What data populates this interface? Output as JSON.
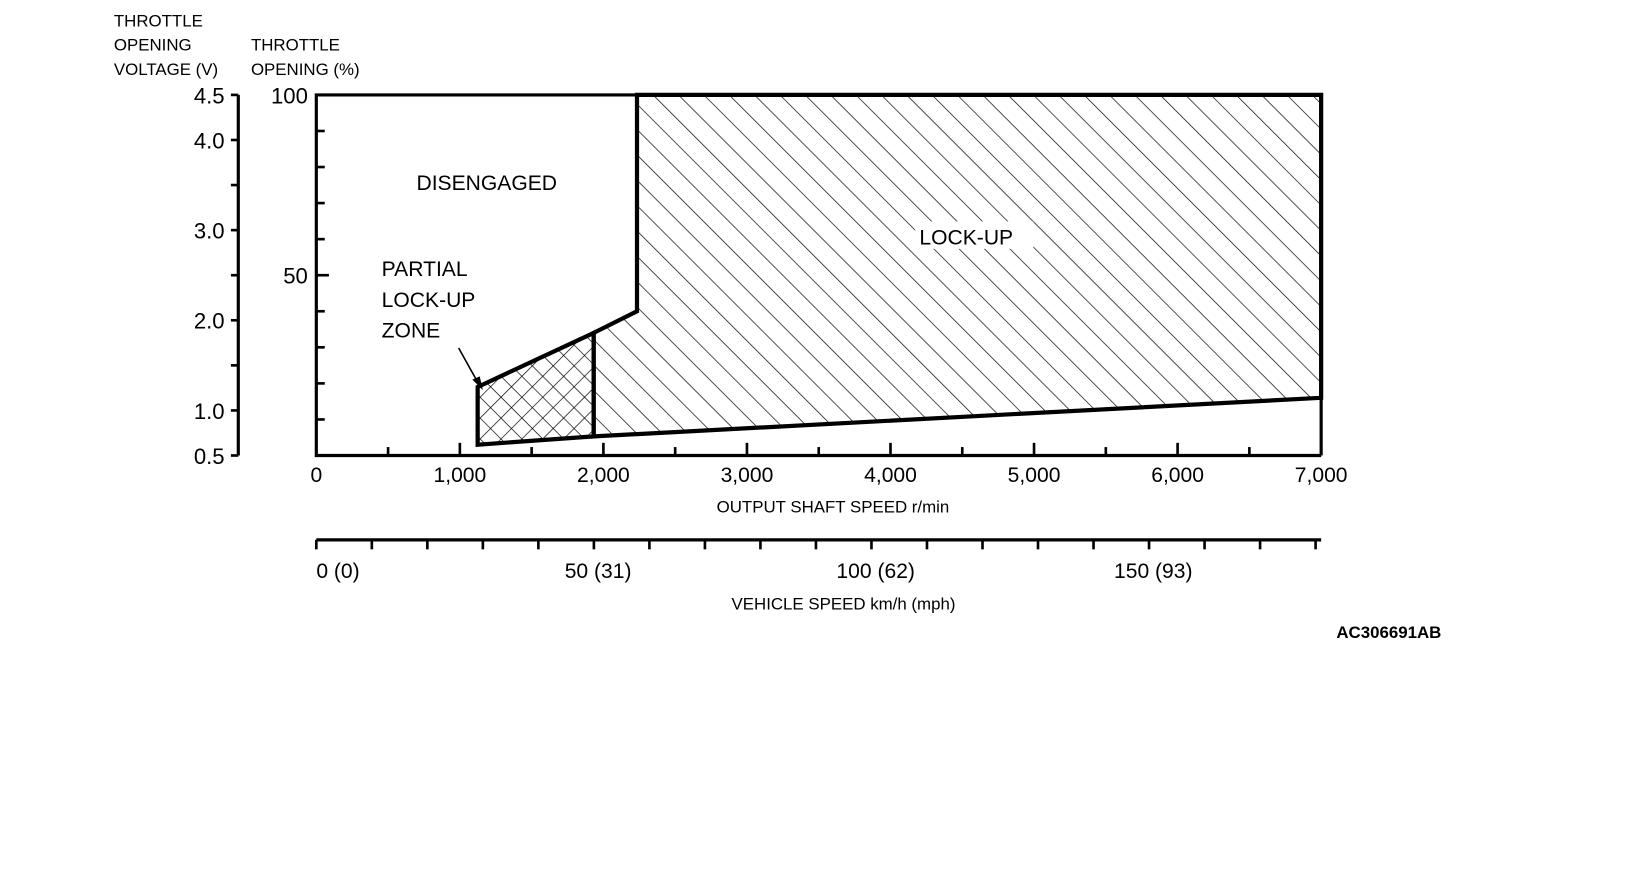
{
  "chart_data": {
    "type": "area",
    "title": "",
    "axes": {
      "voltage": {
        "label_lines": [
          "THROTTLE",
          "OPENING",
          "VOLTAGE (V)"
        ],
        "range": [
          0.5,
          4.5
        ],
        "tick_labels": [
          "0.5",
          "1.0",
          "2.0",
          "3.0",
          "4.0",
          "4.5"
        ],
        "minor_step": 0.5
      },
      "throttle": {
        "label_lines": [
          "THROTTLE",
          "OPENING (%)"
        ],
        "range": [
          0,
          100
        ],
        "tick_labels": [
          "50",
          "100"
        ],
        "minor_step": 10
      },
      "output_shaft": {
        "label": "OUTPUT SHAFT SPEED r/min",
        "range": [
          0,
          7000
        ],
        "tick_labels": [
          "0",
          "1,000",
          "2,000",
          "3,000",
          "4,000",
          "5,000",
          "6,000",
          "7,000"
        ],
        "minor_step": 500
      },
      "vehicle_speed": {
        "label": "VEHICLE SPEED km/h (mph)",
        "range": [
          0,
          181
        ],
        "tick_labels": [
          {
            "kmh": 0,
            "text": "0 (0)"
          },
          {
            "kmh": 50,
            "text": "50 (31)"
          },
          {
            "kmh": 100,
            "text": "100 (62)"
          },
          {
            "kmh": 150,
            "text": "150 (93)"
          }
        ],
        "minor_step": 10
      }
    },
    "regions": {
      "disengaged": {
        "label": "DISENGAGED"
      },
      "partial_lockup": {
        "label_lines": [
          "PARTIAL",
          "LOCK-UP",
          "ZONE"
        ],
        "pattern": "cross-hatch",
        "polygon": [
          [
            1124,
            3
          ],
          [
            1124,
            19
          ],
          [
            1932,
            34
          ],
          [
            1932,
            5.3
          ]
        ]
      },
      "lockup": {
        "label": "LOCK-UP",
        "pattern": "diagonal-hatch",
        "polygon": [
          [
            1932,
            5.3
          ],
          [
            1932,
            34
          ],
          [
            2234,
            40
          ],
          [
            2234,
            100
          ],
          [
            7000,
            100
          ],
          [
            7000,
            16
          ]
        ]
      }
    },
    "grid": false
  },
  "figure_code": "AC306691AB"
}
